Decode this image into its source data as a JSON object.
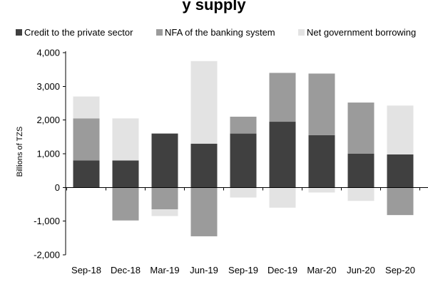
{
  "chart_data": {
    "type": "bar",
    "stacked": true,
    "title": "y supply",
    "ylabel": "Billions of TZS",
    "xlabel": "",
    "ylim": [
      -2000,
      4000
    ],
    "yticks": [
      -2000,
      -1000,
      0,
      1000,
      2000,
      3000,
      4000
    ],
    "ytick_labels": [
      "-2,000",
      "-1,000",
      "0",
      "1,000",
      "2,000",
      "3,000",
      "4,000"
    ],
    "categories": [
      "Sep-18",
      "Dec-18",
      "Mar-19",
      "Jun-19",
      "Sep-19",
      "Dec-19",
      "Mar-20",
      "Jun-20",
      "Sep-20"
    ],
    "legend_position": "top",
    "grid": false,
    "series": [
      {
        "name": "Credit to the private sector",
        "color": "#404040",
        "values": [
          800,
          800,
          1600,
          1300,
          1600,
          1950,
          1550,
          1000,
          980
        ]
      },
      {
        "name": "NFA of the banking system",
        "color": "#9b9b9b",
        "values": [
          1250,
          -980,
          -650,
          -1450,
          500,
          1450,
          1830,
          1520,
          -820
        ]
      },
      {
        "name": "Net government borrowing",
        "color": "#e3e3e3",
        "values": [
          650,
          1250,
          -200,
          2450,
          -300,
          -600,
          -150,
          -400,
          1450
        ]
      }
    ]
  }
}
